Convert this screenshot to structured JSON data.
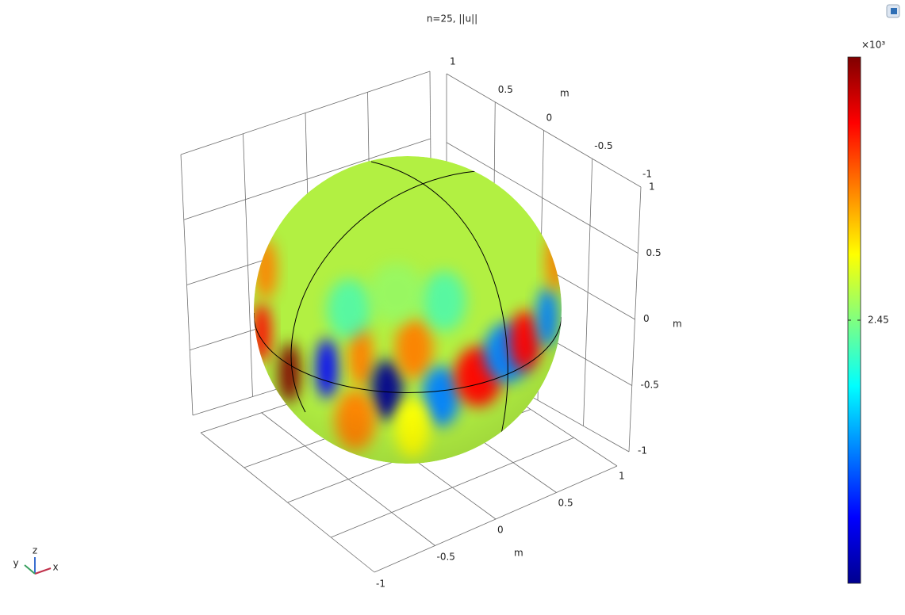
{
  "chart_data": {
    "type": "surface3d",
    "title": "n=25, ||u||",
    "xticks": [
      -1,
      -0.5,
      0,
      0.5,
      1
    ],
    "yticks": [
      -1,
      -0.5,
      0,
      0.5,
      1
    ],
    "zticks": [
      -1,
      -0.5,
      0,
      0.5,
      1
    ],
    "xlim": [
      -1,
      1
    ],
    "ylim": [
      -1,
      1
    ],
    "zlim": [
      -1,
      1
    ],
    "xlabel": "m",
    "ylabel": "m",
    "zlabel": "m",
    "grid": true,
    "colorbar": {
      "multiplier": "×10³",
      "clim": [
        2.3,
        2.6
      ],
      "ticks": [
        2.45
      ],
      "colormap": [
        "#00008f",
        "#0000ff",
        "#0080ff",
        "#00ffff",
        "#80ff80",
        "#ffff00",
        "#ff8000",
        "#ff0000",
        "#800000"
      ]
    },
    "surface_color": "#b2f042",
    "triad_labels": [
      "x",
      "y",
      "z"
    ]
  }
}
